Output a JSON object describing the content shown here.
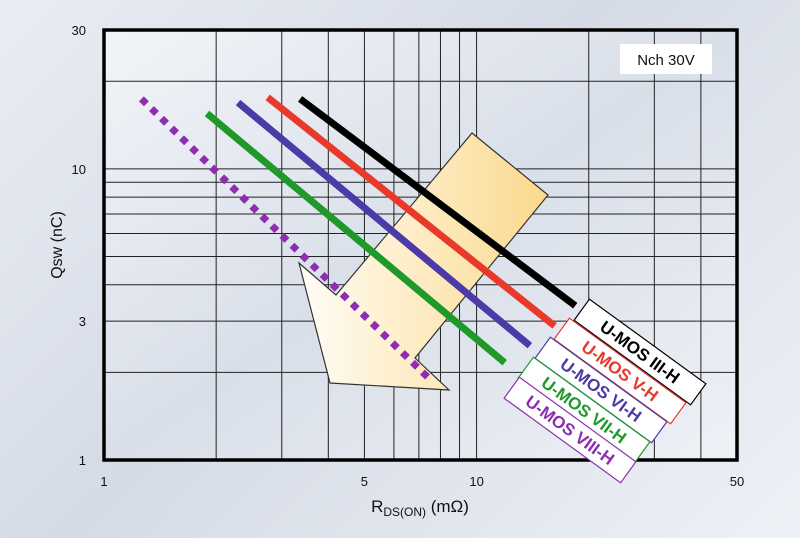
{
  "chart_data": {
    "type": "line",
    "title": "",
    "annotation": "Nch 30V",
    "xlabel_main": "R",
    "xlabel_sub": "DS(ON)",
    "xlabel_unit": " (mΩ)",
    "ylabel": "Qsw (nC)",
    "x_scale": "log",
    "y_scale": "log",
    "xlim": [
      1,
      50
    ],
    "ylim": [
      1,
      30
    ],
    "x_tick_labels": [
      "1",
      "5",
      "10",
      "50"
    ],
    "x_ticks": [
      1,
      5,
      10,
      50
    ],
    "y_tick_labels": [
      "1",
      "3",
      "10",
      "30"
    ],
    "y_ticks": [
      1,
      3,
      10,
      30
    ],
    "grid": true,
    "series": [
      {
        "name": "U-MOS III-H",
        "color": "#000000",
        "style": "solid",
        "x": [
          3.36,
          18.4
        ],
        "y": [
          17.4,
          3.39
        ]
      },
      {
        "name": "U-MOS V-H",
        "color": "#e8392b",
        "style": "solid",
        "x": [
          2.75,
          16.2
        ],
        "y": [
          17.6,
          2.89
        ]
      },
      {
        "name": "U-MOS VI-H",
        "color": "#4b3aa8",
        "style": "solid",
        "x": [
          2.29,
          13.9
        ],
        "y": [
          16.9,
          2.47
        ]
      },
      {
        "name": "U-MOS VII-H",
        "color": "#1f9a2a",
        "style": "solid",
        "x": [
          1.89,
          11.9
        ],
        "y": [
          15.5,
          2.16
        ]
      },
      {
        "name": "U-MOS VIII-H",
        "color": "#8e2db0",
        "style": "dotted",
        "x": [
          1.26,
          7.6
        ],
        "y": [
          17.4,
          1.86
        ]
      }
    ],
    "trend_arrow": "down-left",
    "colors": {
      "arrow_fill": "#fbd98c",
      "plot_border": "#000000",
      "grid": "#222222"
    }
  }
}
